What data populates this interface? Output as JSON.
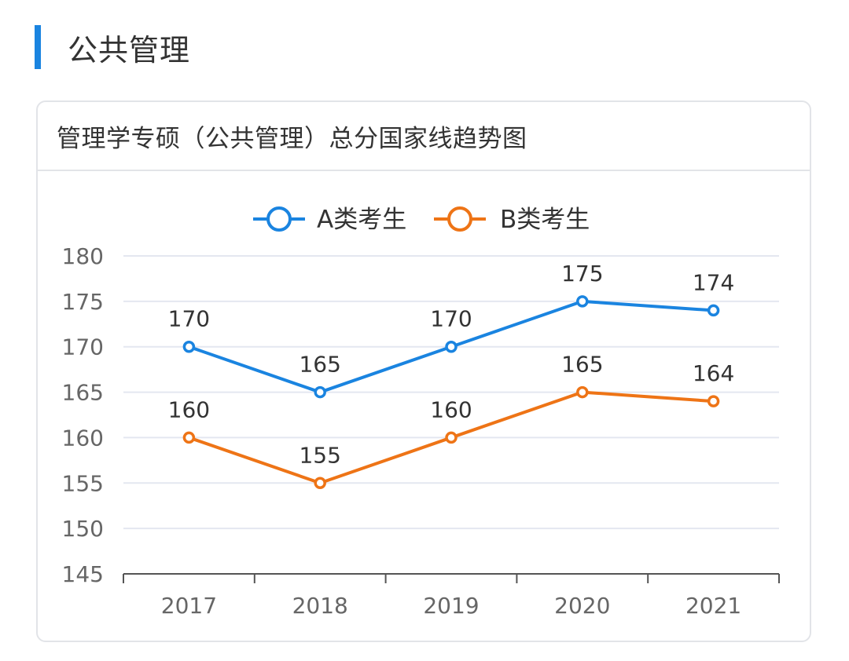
{
  "section": {
    "title": "公共管理"
  },
  "card": {
    "title": "管理学专硕（公共管理）总分国家线趋势图"
  },
  "colors": {
    "accent": "#1a84e0",
    "series_a": "#1a84e0",
    "series_b": "#ee7416",
    "grid": "#e4e7f0",
    "axis": "#555555"
  },
  "chart_data": {
    "type": "line",
    "categories": [
      "2017",
      "2018",
      "2019",
      "2020",
      "2021"
    ],
    "series": [
      {
        "name": "A类考生",
        "values": [
          170,
          165,
          170,
          175,
          174
        ]
      },
      {
        "name": "B类考生",
        "values": [
          160,
          155,
          160,
          165,
          164
        ]
      }
    ],
    "ylim": [
      145,
      180
    ],
    "yticks": [
      145,
      150,
      155,
      160,
      165,
      170,
      175,
      180
    ],
    "grid": true,
    "legend": "top-center",
    "data_labels": true
  }
}
